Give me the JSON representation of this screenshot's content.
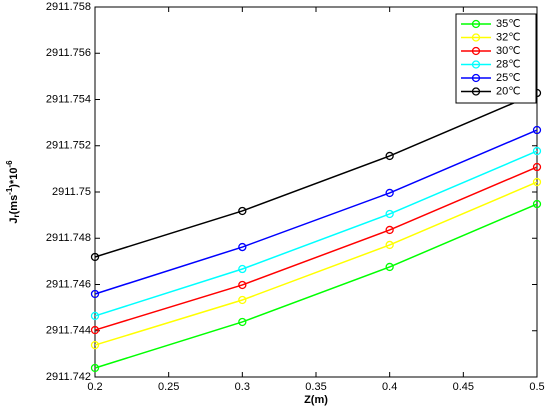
{
  "chart_data": {
    "type": "line",
    "x": [
      0.2,
      0.3,
      0.4,
      0.5
    ],
    "xlabel": "Z(m)",
    "ylabel_parts": [
      "J",
      "r",
      "(ms",
      "-1",
      ")*10",
      "-6"
    ],
    "xlim": [
      0.2,
      0.5
    ],
    "xticks": [
      0.2,
      0.25,
      0.3,
      0.35,
      0.4,
      0.45,
      0.5
    ],
    "ylim": [
      2911.742,
      2911.758
    ],
    "yticks": [
      2911.742,
      2911.744,
      2911.746,
      2911.748,
      2911.75,
      2911.752,
      2911.754,
      2911.756,
      2911.758
    ],
    "legend": "upper right",
    "series": [
      {
        "name": "35℃",
        "color": "#00ff00",
        "values": [
          2911.74239,
          2911.74438,
          2911.74676,
          2911.74948
        ]
      },
      {
        "name": "32℃",
        "color": "#ffff00",
        "values": [
          2911.74338,
          2911.74533,
          2911.74771,
          2911.75043
        ]
      },
      {
        "name": "30℃",
        "color": "#ff0000",
        "values": [
          2911.74403,
          2911.74598,
          2911.74836,
          2911.75108
        ]
      },
      {
        "name": "28℃",
        "color": "#00ffff",
        "values": [
          2911.74464,
          2911.74667,
          2911.74905,
          2911.75177
        ]
      },
      {
        "name": "25℃",
        "color": "#0000ff",
        "values": [
          2911.74559,
          2911.74762,
          2911.74996,
          2911.75268
        ]
      },
      {
        "name": "20℃",
        "color": "#000000",
        "values": [
          2911.74719,
          2911.74918,
          2911.75156,
          2911.75428
        ]
      }
    ]
  }
}
